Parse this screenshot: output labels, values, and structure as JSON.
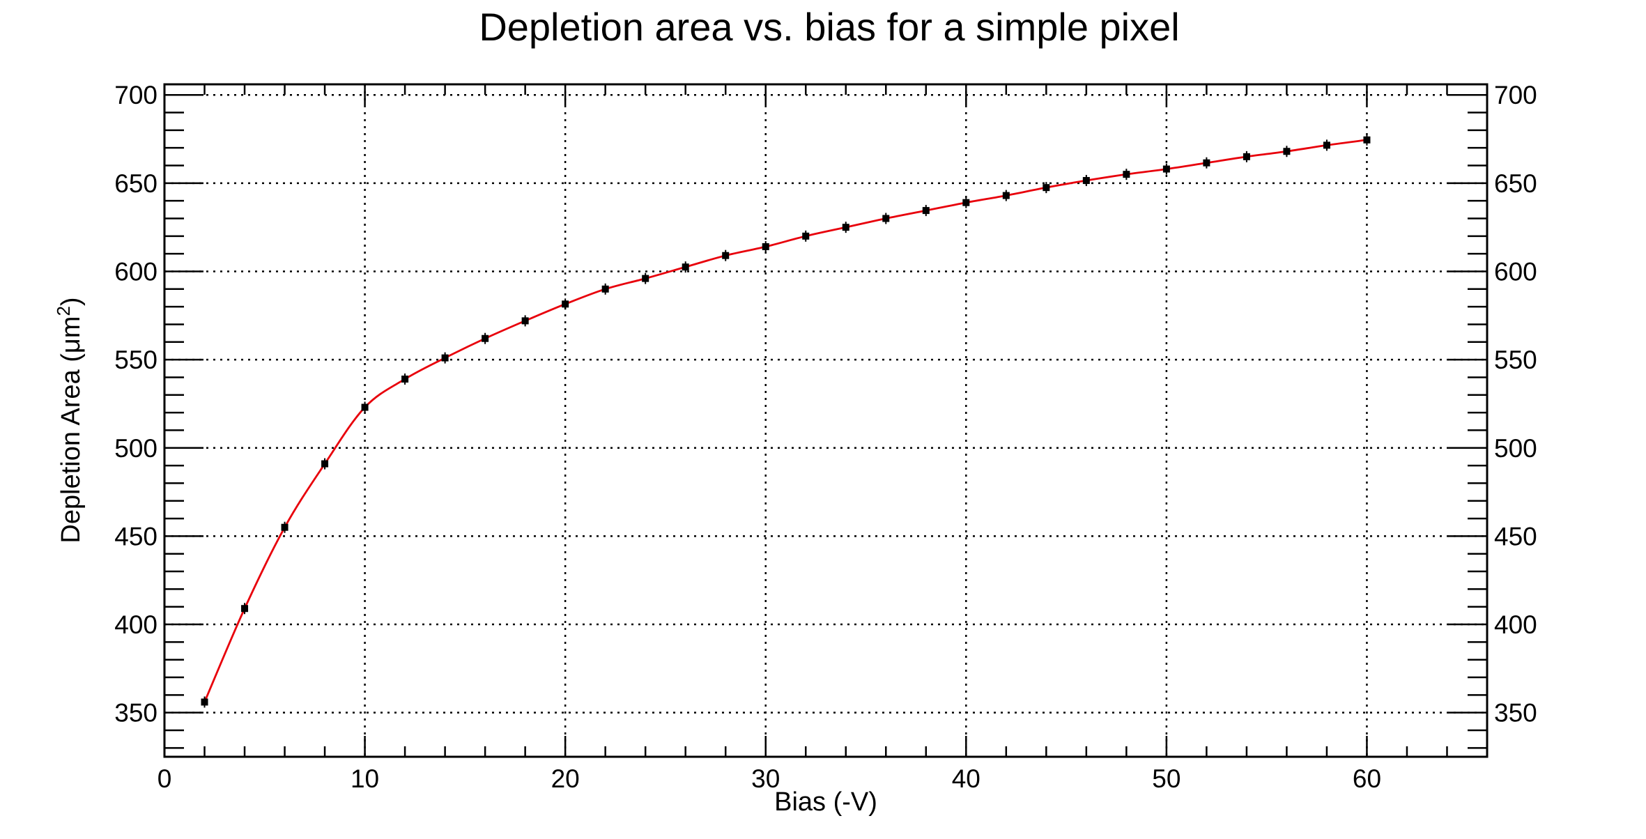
{
  "chart_data": {
    "type": "line",
    "title": "Depletion area vs. bias for a simple pixel",
    "xlabel": "Bias (-V)",
    "ylabel": "Depletion Area (μm",
    "ylabel_superscript": "2",
    "ylabel_suffix": ")",
    "xlim": [
      0,
      66
    ],
    "ylim": [
      325,
      706
    ],
    "x_ticks": [
      "0",
      "10",
      "20",
      "30",
      "40",
      "50",
      "60"
    ],
    "y_ticks": [
      "350",
      "400",
      "450",
      "500",
      "550",
      "600",
      "650",
      "700"
    ],
    "grid": true,
    "right_axis_labels": true,
    "series": [
      {
        "color": "#e8000b",
        "marker_color": "#000000",
        "x": [
          2,
          4,
          6,
          8,
          10,
          12,
          14,
          16,
          18,
          20,
          22,
          24,
          26,
          28,
          30,
          32,
          34,
          36,
          38,
          40,
          42,
          44,
          46,
          48,
          50,
          52,
          54,
          56,
          58,
          60
        ],
        "y": [
          356,
          409,
          455,
          491,
          523,
          539,
          551,
          562,
          572,
          581.5,
          590,
          596,
          602.5,
          609,
          614,
          620,
          625,
          630,
          634.5,
          639,
          643,
          647.5,
          651.5,
          655,
          658,
          661.5,
          665,
          668,
          671.5,
          674.5
        ]
      }
    ]
  }
}
